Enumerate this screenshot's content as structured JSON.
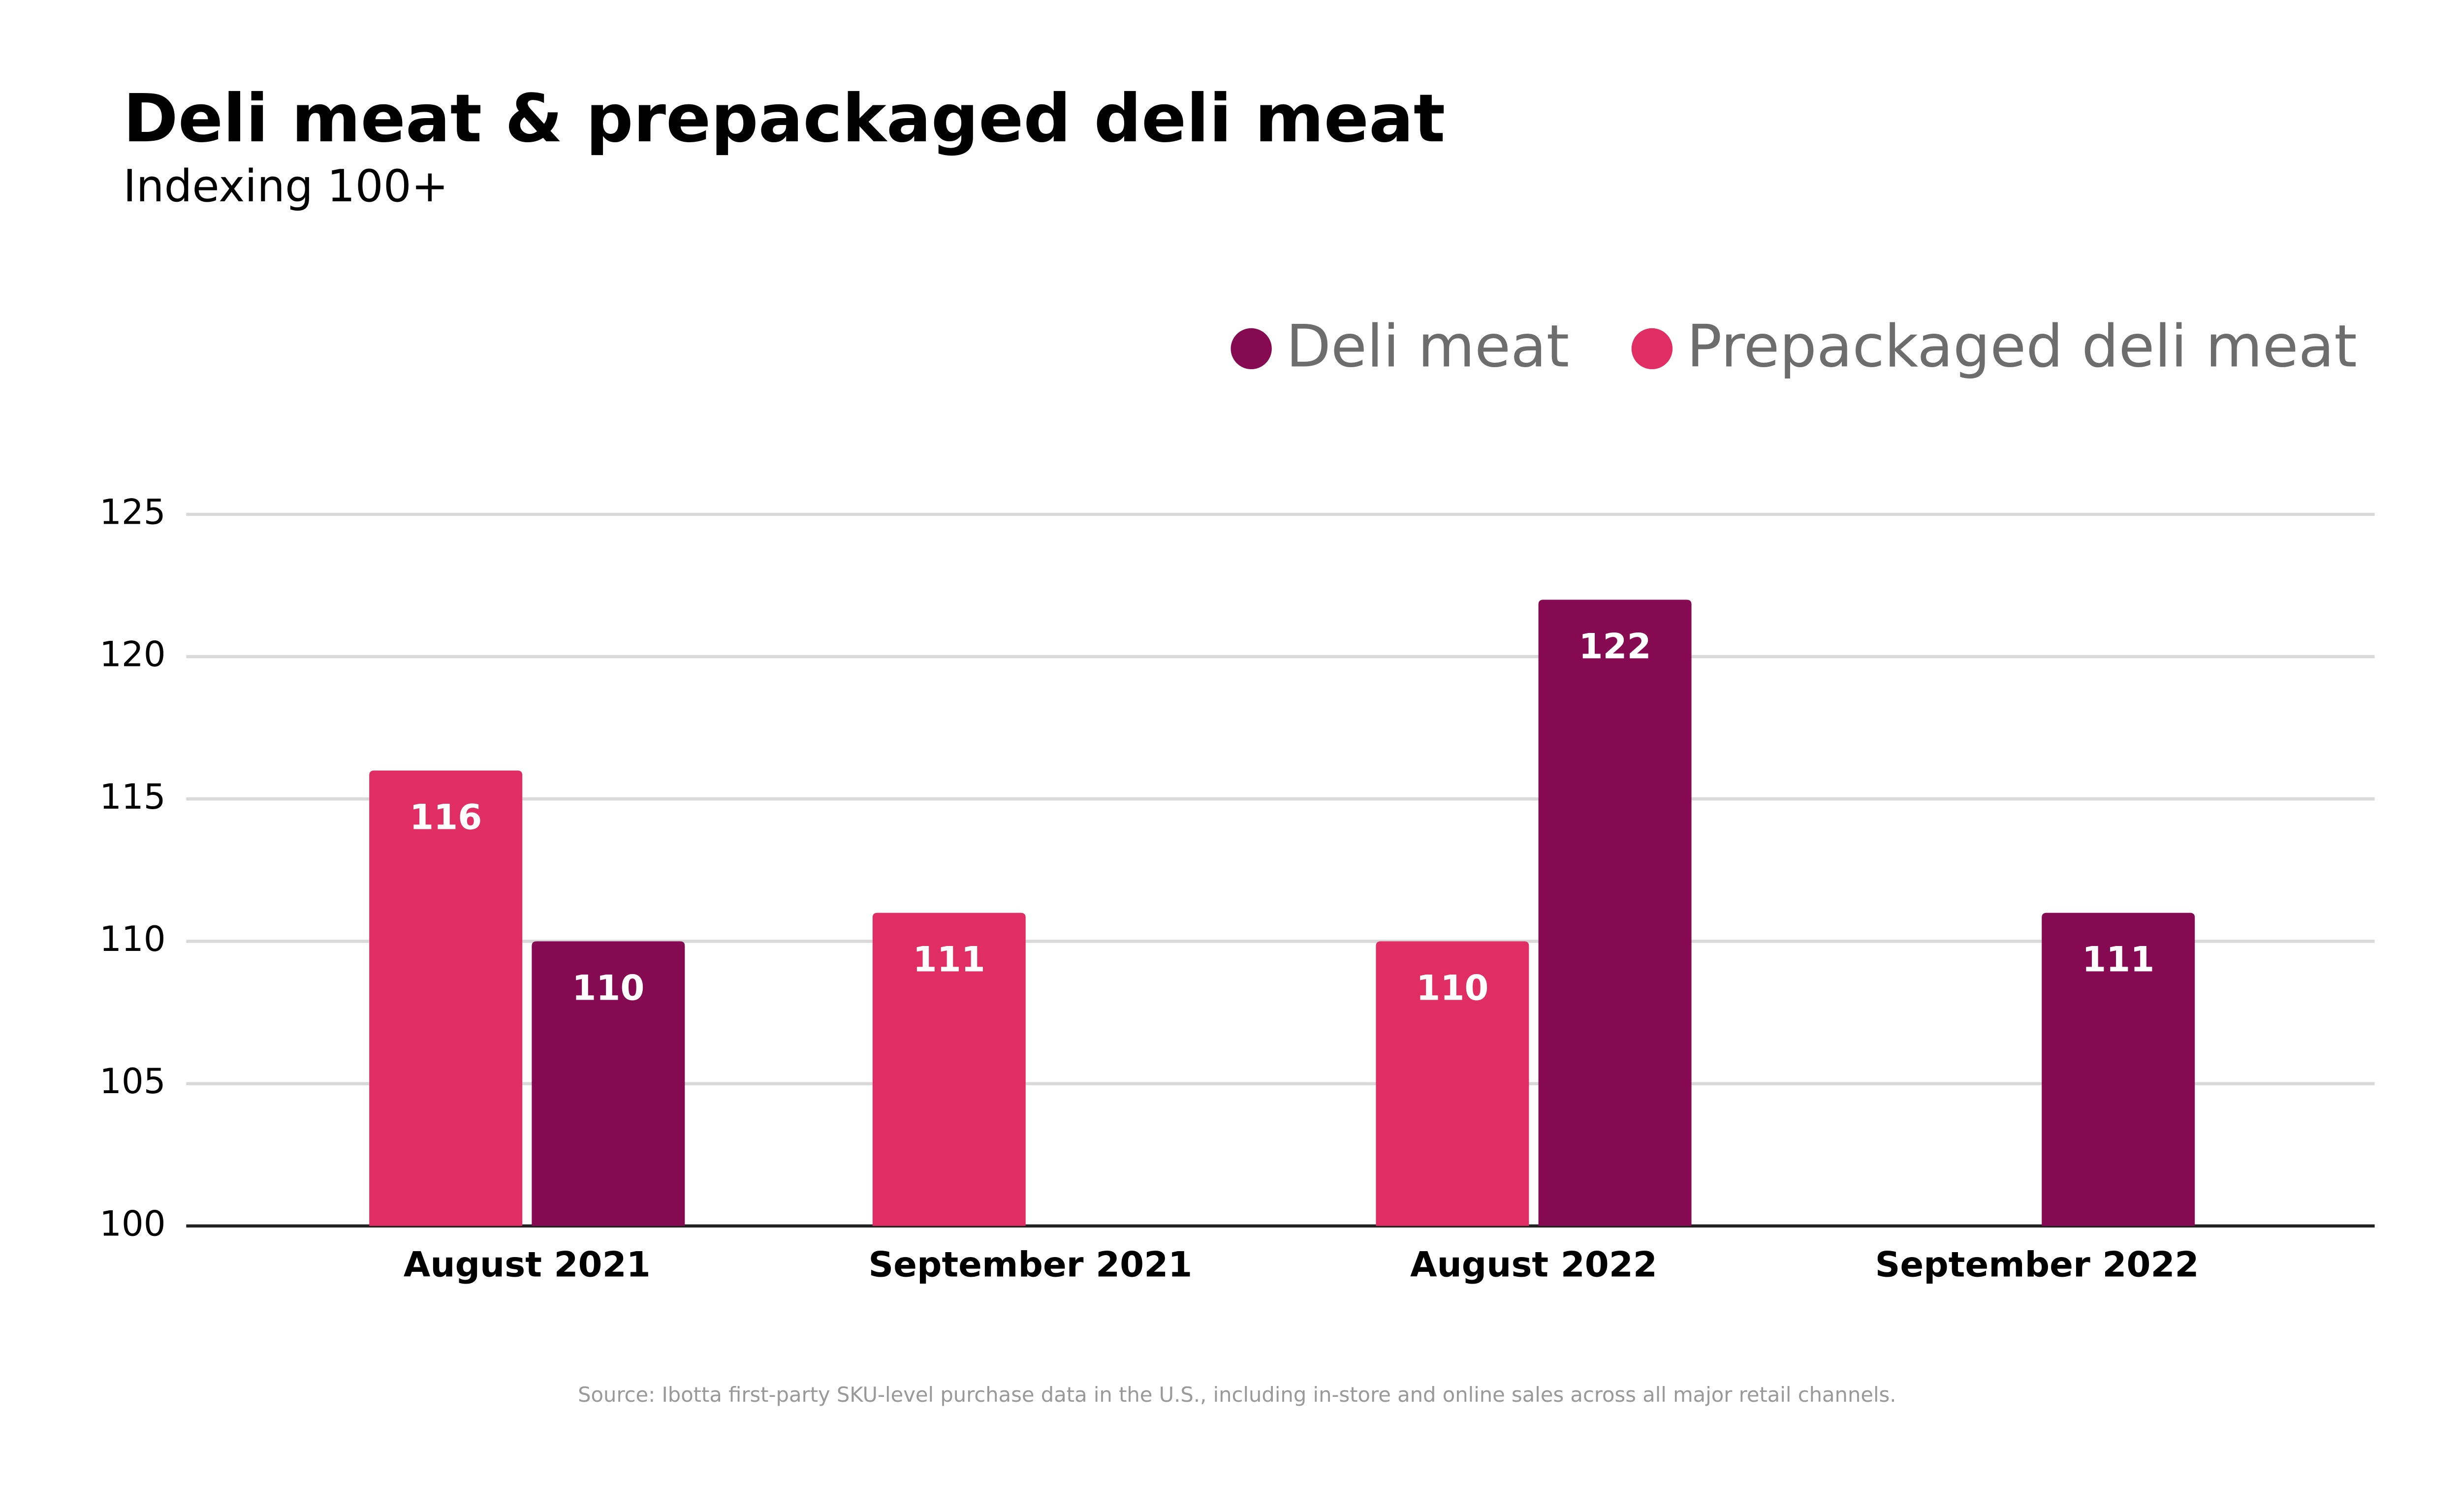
{
  "chart_data": {
    "type": "bar",
    "title": "Deli meat & prepackaged deli meat",
    "subtitle": "Indexing 100+",
    "categories": [
      "August 2021",
      "September 2021",
      "August 2022",
      "September 2022"
    ],
    "series": [
      {
        "name": "Deli meat",
        "color": "#860a52",
        "values": [
          110,
          null,
          122,
          111
        ]
      },
      {
        "name": "Prepackaged deli meat",
        "color": "#e02d63",
        "values": [
          116,
          111,
          110,
          null
        ]
      }
    ],
    "ylim": [
      100,
      125
    ],
    "yticks": [
      100,
      105,
      110,
      115,
      120,
      125
    ],
    "grid": true,
    "legend": "top-right",
    "source": "Source: Ibotta first-party SKU-level purchase data in the U.S., including in-store and online sales across all major retail channels."
  }
}
